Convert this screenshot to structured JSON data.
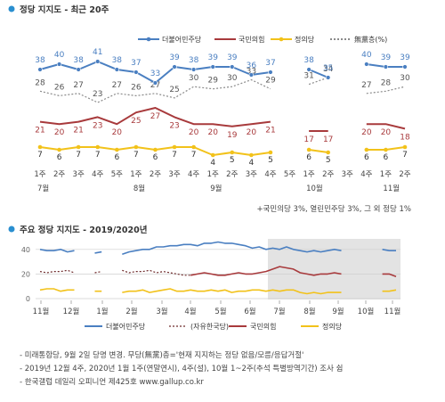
{
  "colors": {
    "blue": "#4a7fc1",
    "red": "#a83a3c",
    "yellow": "#f2c21a",
    "gray": "#8a8a8a",
    "darkred": "#6e2a2b",
    "shade": "#dcdcdc",
    "bullet": "#2a8fd0"
  },
  "chart_data": [
    {
      "type": "line",
      "title": "정당 지지도 - 최근 20주",
      "categories": [
        "1주",
        "2주",
        "3주",
        "4주",
        "5주",
        "1주",
        "2주",
        "3주",
        "4주",
        "1주",
        "2주",
        "3주",
        "4주",
        "5주",
        "1주",
        "2주",
        "3주",
        "4주",
        "1주",
        "2주"
      ],
      "month_labels": [
        {
          "label": "7월",
          "index": 0
        },
        {
          "label": "8월",
          "index": 5
        },
        {
          "label": "9월",
          "index": 9
        },
        {
          "label": "10월",
          "index": 14
        },
        {
          "label": "11월",
          "index": 18
        }
      ],
      "legend": [
        "더불어민주당",
        "국민의힘",
        "정의당",
        "無黨층(%)"
      ],
      "legend_placement": "top",
      "series": [
        {
          "name": "더불어민주당",
          "values": [
            38,
            40,
            38,
            41,
            38,
            37,
            33,
            39,
            38,
            39,
            39,
            36,
            37,
            null,
            38,
            35,
            null,
            40,
            39,
            39
          ],
          "color": "#4a7fc1"
        },
        {
          "name": "국민의힘",
          "values": [
            21,
            20,
            21,
            23,
            20,
            25,
            27,
            23,
            20,
            20,
            19,
            20,
            21,
            null,
            17,
            17,
            null,
            20,
            20,
            18
          ],
          "color": "#a83a3c"
        },
        {
          "name": "정의당",
          "values": [
            7,
            6,
            7,
            7,
            6,
            7,
            6,
            7,
            7,
            4,
            5,
            4,
            5,
            null,
            6,
            5,
            null,
            6,
            6,
            7
          ],
          "color": "#f2c21a"
        },
        {
          "name": "無黨층(%)",
          "values": [
            28,
            26,
            27,
            23,
            27,
            26,
            27,
            25,
            30,
            29,
            30,
            33,
            29,
            null,
            31,
            34,
            null,
            27,
            28,
            30
          ],
          "color": "#8a8a8a"
        }
      ],
      "footnote": "+국민의당 3%, 열린민주당 3%, 그 외 정당 1%"
    },
    {
      "type": "line",
      "title": "주요 정당 지지도 - 2019/2020년",
      "x_tick_labels": [
        "11월",
        "12월",
        "1월",
        "2월",
        "3월",
        "4월",
        "5월",
        "6월",
        "7월",
        "8월",
        "9월",
        "10월",
        "11월"
      ],
      "y_tick_labels": [
        "40",
        "20",
        "0"
      ],
      "ylim": [
        0,
        50
      ],
      "legend": [
        "더불어민주당",
        "(자유한국당)",
        "국민의힘",
        "정의당"
      ],
      "legend_placement": "bottom",
      "series": [
        {
          "name": "더불어민주당",
          "color": "#4a7fc1",
          "values": [
            40,
            39,
            39,
            40,
            38,
            39,
            null,
            null,
            37,
            38,
            null,
            null,
            36,
            38,
            39,
            40,
            40,
            42,
            42,
            43,
            43,
            44,
            44,
            43,
            45,
            45,
            46,
            45,
            45,
            44,
            43,
            41,
            42,
            40,
            41,
            40,
            42,
            40,
            39,
            38,
            39,
            38,
            39,
            40,
            39,
            null,
            null,
            38,
            null,
            null,
            40,
            39,
            39
          ]
        },
        {
          "name": "(자유한국당)",
          "color": "#6e2a2b",
          "values": [
            22,
            21,
            22,
            22,
            23,
            21,
            null,
            null,
            21,
            22,
            null,
            null,
            23,
            21,
            22,
            22,
            23,
            21,
            22,
            21,
            20,
            19,
            19,
            null,
            null,
            null,
            null,
            null,
            null,
            null,
            null,
            null,
            null,
            null,
            null,
            null,
            null,
            null,
            null,
            null,
            null,
            null,
            null,
            null,
            null,
            null,
            null,
            null,
            null,
            null,
            null,
            null,
            null
          ]
        },
        {
          "name": "국민의힘",
          "color": "#a83a3c",
          "values": [
            null,
            null,
            null,
            null,
            null,
            null,
            null,
            null,
            null,
            null,
            null,
            null,
            null,
            null,
            null,
            null,
            null,
            null,
            null,
            null,
            null,
            null,
            19,
            20,
            21,
            20,
            19,
            19,
            20,
            21,
            20,
            20,
            21,
            22,
            24,
            26,
            25,
            24,
            21,
            20,
            19,
            20,
            20,
            21,
            20,
            null,
            null,
            17,
            null,
            null,
            20,
            20,
            18
          ]
        },
        {
          "name": "정의당",
          "color": "#f2c21a",
          "values": [
            7,
            8,
            8,
            6,
            7,
            7,
            null,
            null,
            6,
            6,
            null,
            null,
            5,
            6,
            6,
            7,
            5,
            6,
            7,
            8,
            6,
            6,
            7,
            6,
            6,
            7,
            6,
            7,
            5,
            6,
            6,
            7,
            7,
            6,
            7,
            6,
            7,
            7,
            5,
            4,
            5,
            4,
            5,
            5,
            5,
            null,
            null,
            6,
            null,
            null,
            6,
            6,
            7
          ]
        }
      ]
    }
  ],
  "notes": [
    "- 미래통합당, 9월 2일 당명 변경. 무당(無黨)층='현재 지지하는 정당 없음/모름/응답거절'",
    "- 2019년 12월 4주, 2020년 1월 1주(연말연시), 4주(설), 10월 1~2주(추석 특별방역기간) 조사 쉼",
    "- 한국갤럽 데일리 오피니언 제425호 www.gallup.co.kr"
  ]
}
